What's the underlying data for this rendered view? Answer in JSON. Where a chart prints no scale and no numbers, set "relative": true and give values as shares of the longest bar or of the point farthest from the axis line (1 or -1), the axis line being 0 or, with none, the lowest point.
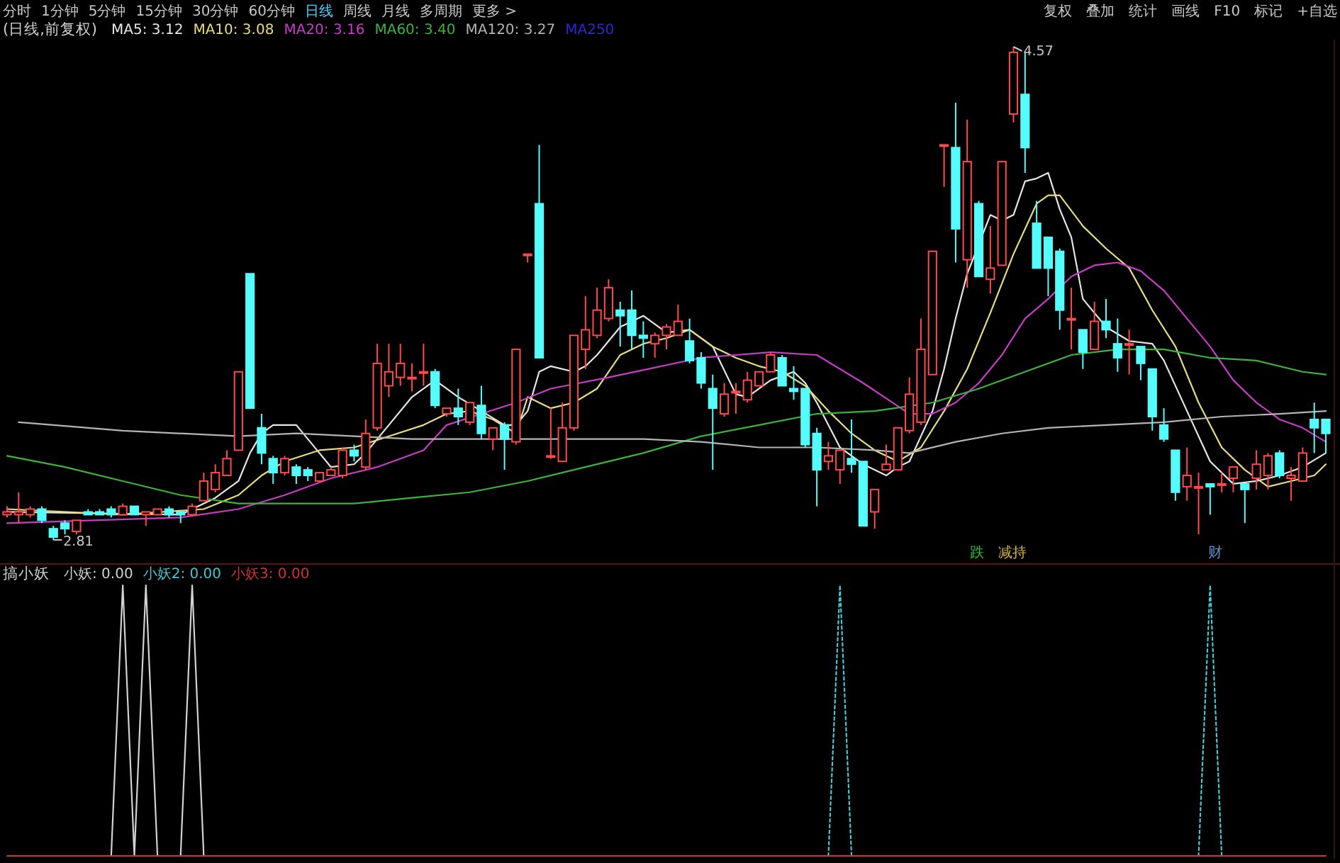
{
  "chart_data": [
    {
      "type": "candlestick",
      "title": "(日线,前复权)",
      "legend": "top left",
      "annotations": [
        "分时",
        "1分钟",
        "5分钟",
        "15分钟",
        "30分钟",
        "60分钟",
        "日线",
        "周线",
        "月线",
        "多周期",
        "更多 >",
        "复权",
        "叠加",
        "统计",
        "画线",
        "F10",
        "标记",
        "+自选",
        "MA250",
        "4.57",
        "2.81",
        "跌",
        "减持",
        "财"
      ],
      "categories": [
        null,
        null,
        null,
        null,
        null,
        null,
        null,
        null,
        null,
        null,
        null,
        null,
        null,
        null,
        null,
        null,
        null,
        null,
        null,
        null,
        null,
        null,
        null,
        null,
        null,
        null,
        null,
        null,
        null,
        null,
        null,
        null,
        null,
        null,
        null,
        null,
        null,
        null,
        null,
        null,
        null,
        null,
        null,
        null,
        null,
        null,
        null,
        null,
        null,
        null,
        null,
        null,
        null,
        null,
        null,
        null,
        null,
        null,
        null,
        null,
        null,
        null,
        null,
        null,
        null,
        null,
        null,
        null,
        null,
        null,
        null,
        null,
        null,
        null,
        null,
        null,
        null,
        null,
        null,
        null,
        null,
        null,
        null,
        null,
        null,
        null,
        null,
        null,
        null,
        null,
        null,
        null,
        null,
        null,
        null,
        null,
        null,
        null,
        null,
        null,
        null,
        null,
        null,
        null,
        null,
        null,
        null,
        null,
        null,
        null,
        null,
        null,
        null,
        null,
        null
      ],
      "ohlc": [
        [
          2.9,
          2.93,
          2.89,
          2.91
        ],
        [
          2.9,
          2.98,
          2.87,
          2.91
        ],
        [
          2.9,
          2.93,
          2.89,
          2.92
        ],
        [
          2.92,
          2.93,
          2.87,
          2.88
        ],
        [
          2.85,
          2.86,
          2.81,
          2.82
        ],
        [
          2.87,
          2.88,
          2.83,
          2.85
        ],
        [
          2.84,
          2.88,
          2.83,
          2.88
        ],
        [
          2.91,
          2.92,
          2.9,
          2.9
        ],
        [
          2.91,
          2.92,
          2.9,
          2.9
        ],
        [
          2.92,
          2.93,
          2.89,
          2.9
        ],
        [
          2.9,
          2.94,
          2.9,
          2.93
        ],
        [
          2.93,
          2.93,
          2.9,
          2.9
        ],
        [
          2.9,
          2.91,
          2.86,
          2.91
        ],
        [
          2.9,
          2.92,
          2.9,
          2.92
        ],
        [
          2.92,
          2.93,
          2.89,
          2.9
        ],
        [
          2.91,
          2.91,
          2.87,
          2.9
        ],
        [
          2.9,
          2.94,
          2.9,
          2.93
        ],
        [
          2.95,
          3.05,
          2.95,
          3.02
        ],
        [
          2.99,
          3.08,
          2.98,
          3.05
        ],
        [
          3.04,
          3.13,
          3.04,
          3.1
        ],
        [
          3.13,
          3.41,
          3.13,
          3.41
        ],
        [
          3.76,
          3.76,
          3.28,
          3.28
        ],
        [
          3.21,
          3.26,
          3.08,
          3.12
        ],
        [
          3.1,
          3.11,
          3.01,
          3.05
        ],
        [
          3.05,
          3.11,
          3.04,
          3.1
        ],
        [
          3.07,
          3.08,
          3.01,
          3.04
        ],
        [
          3.06,
          3.07,
          3.02,
          3.04
        ],
        [
          3.02,
          3.05,
          3.02,
          3.05
        ],
        [
          3.04,
          3.07,
          3.04,
          3.06
        ],
        [
          3.04,
          3.14,
          3.03,
          3.13
        ],
        [
          3.13,
          3.15,
          3.09,
          3.11
        ],
        [
          3.07,
          3.24,
          3.06,
          3.19
        ],
        [
          3.21,
          3.51,
          3.2,
          3.44
        ],
        [
          3.36,
          3.51,
          3.32,
          3.41
        ],
        [
          3.39,
          3.51,
          3.36,
          3.44
        ],
        [
          3.39,
          3.44,
          3.34,
          3.39
        ],
        [
          3.41,
          3.51,
          3.36,
          3.41
        ],
        [
          3.41,
          3.42,
          3.28,
          3.29
        ],
        [
          3.26,
          3.28,
          3.25,
          3.28
        ],
        [
          3.28,
          3.35,
          3.22,
          3.25
        ],
        [
          3.23,
          3.3,
          3.22,
          3.3
        ],
        [
          3.29,
          3.36,
          3.17,
          3.19
        ],
        [
          3.17,
          3.21,
          3.13,
          3.21
        ],
        [
          3.22,
          3.23,
          3.06,
          3.17
        ],
        [
          3.16,
          3.49,
          3.15,
          3.49
        ],
        [
          3.83,
          3.83,
          3.8,
          3.83
        ],
        [
          4.01,
          4.22,
          3.46,
          3.46
        ],
        [
          3.11,
          3.28,
          3.1,
          3.11
        ],
        [
          3.09,
          3.3,
          3.09,
          3.21
        ],
        [
          3.21,
          3.54,
          3.2,
          3.54
        ],
        [
          3.49,
          3.68,
          3.42,
          3.56
        ],
        [
          3.54,
          3.71,
          3.53,
          3.63
        ],
        [
          3.6,
          3.74,
          3.59,
          3.71
        ],
        [
          3.63,
          3.66,
          3.5,
          3.61
        ],
        [
          3.63,
          3.7,
          3.49,
          3.54
        ],
        [
          3.54,
          3.59,
          3.46,
          3.53
        ],
        [
          3.51,
          3.55,
          3.46,
          3.54
        ],
        [
          3.54,
          3.58,
          3.49,
          3.57
        ],
        [
          3.54,
          3.65,
          3.54,
          3.59
        ],
        [
          3.52,
          3.6,
          3.44,
          3.45
        ],
        [
          3.46,
          3.48,
          3.35,
          3.37
        ],
        [
          3.35,
          3.4,
          3.06,
          3.28
        ],
        [
          3.26,
          3.37,
          3.25,
          3.33
        ],
        [
          3.34,
          3.37,
          3.26,
          3.34
        ],
        [
          3.31,
          3.41,
          3.3,
          3.38
        ],
        [
          3.36,
          3.41,
          3.36,
          3.41
        ],
        [
          3.41,
          3.48,
          3.41,
          3.47
        ],
        [
          3.46,
          3.47,
          3.36,
          3.36
        ],
        [
          3.35,
          3.43,
          3.31,
          3.34
        ],
        [
          3.35,
          3.35,
          3.14,
          3.15
        ],
        [
          3.19,
          3.21,
          2.93,
          3.06
        ],
        [
          3.09,
          3.16,
          3.06,
          3.11
        ],
        [
          3.06,
          3.13,
          3.01,
          3.13
        ],
        [
          3.1,
          3.24,
          3.05,
          3.08
        ],
        [
          3.09,
          3.09,
          2.86,
          2.86
        ],
        [
          2.91,
          2.99,
          2.85,
          2.99
        ],
        [
          3.06,
          3.15,
          3.06,
          3.08
        ],
        [
          3.06,
          3.21,
          3.06,
          3.21
        ],
        [
          3.2,
          3.39,
          3.19,
          3.33
        ],
        [
          3.23,
          3.6,
          3.22,
          3.49
        ],
        [
          3.4,
          3.84,
          3.4,
          3.84
        ],
        [
          4.22,
          4.22,
          4.07,
          4.22
        ],
        [
          4.21,
          4.37,
          3.8,
          3.92
        ],
        [
          3.81,
          4.31,
          3.71,
          4.16
        ],
        [
          4.01,
          4.02,
          3.75,
          3.75
        ],
        [
          3.74,
          3.93,
          3.69,
          3.78
        ],
        [
          3.79,
          4.16,
          3.79,
          4.16
        ],
        [
          4.33,
          4.57,
          4.3,
          4.55
        ],
        [
          4.4,
          4.55,
          4.12,
          4.21
        ],
        [
          3.94,
          4.02,
          3.78,
          3.78
        ],
        [
          3.89,
          3.89,
          3.68,
          3.78
        ],
        [
          3.84,
          3.85,
          3.56,
          3.63
        ],
        [
          3.6,
          3.71,
          3.49,
          3.6
        ],
        [
          3.56,
          3.56,
          3.42,
          3.48
        ],
        [
          3.49,
          3.66,
          3.49,
          3.59
        ],
        [
          3.59,
          3.67,
          3.53,
          3.56
        ],
        [
          3.51,
          3.6,
          3.41,
          3.46
        ],
        [
          3.51,
          3.56,
          3.4,
          3.51
        ],
        [
          3.5,
          3.5,
          3.38,
          3.44
        ],
        [
          3.42,
          3.42,
          3.2,
          3.25
        ],
        [
          3.22,
          3.28,
          3.16,
          3.17
        ],
        [
          3.13,
          3.13,
          2.95,
          2.98
        ],
        [
          3.0,
          3.14,
          2.95,
          3.04
        ],
        [
          3.0,
          3.05,
          2.83,
          3.0
        ],
        [
          3.01,
          3.01,
          2.9,
          3.0
        ],
        [
          3.01,
          3.05,
          2.98,
          3.01
        ],
        [
          3.03,
          3.07,
          2.98,
          3.07
        ],
        [
          3.01,
          3.01,
          2.87,
          2.99
        ],
        [
          3.03,
          3.13,
          2.99,
          3.08
        ],
        [
          3.04,
          3.12,
          2.99,
          3.11
        ],
        [
          3.12,
          3.13,
          3.03,
          3.04
        ],
        [
          3.03,
          3.07,
          2.95,
          3.04
        ],
        [
          3.02,
          3.14,
          3.02,
          3.12
        ],
        [
          3.24,
          3.3,
          3.12,
          3.21
        ],
        [
          3.24,
          3.24,
          3.12,
          3.19
        ]
      ],
      "series": [
        {
          "name": "MA5: 3.12",
          "type": "line",
          "color": "#e6e6e6",
          "values": [
            2.91,
            null,
            null,
            null,
            null,
            null,
            null,
            null,
            null,
            null,
            null,
            null,
            null,
            null,
            null,
            2.9,
            null,
            null,
            2.96,
            null,
            3.02,
            3.12,
            3.19,
            3.22,
            null,
            3.22,
            null,
            3.12,
            3.07,
            null,
            3.08,
            3.12,
            null,
            3.22,
            null,
            3.32,
            null,
            3.38,
            null,
            3.32,
            null,
            3.27,
            null,
            3.22,
            3.22,
            3.27,
            3.41,
            3.43,
            null,
            3.41,
            3.43,
            3.47,
            null,
            3.57,
            null,
            3.61,
            null,
            3.55,
            null,
            3.56,
            null,
            3.5,
            null,
            3.33,
            3.32,
            null,
            3.38,
            null,
            3.41,
            3.37,
            3.3,
            null,
            3.14,
            null,
            3.08,
            null,
            3.04,
            3.07,
            3.09,
            null,
            3.27,
            3.42,
            3.6,
            3.76,
            null,
            3.97,
            3.95,
            3.97,
            4.09,
            4.1,
            4.12,
            3.99,
            3.89,
            3.67,
            null,
            3.57,
            null,
            3.52,
            null,
            3.51,
            3.45,
            null,
            3.27,
            null,
            3.09,
            null,
            3.01,
            null,
            3.02,
            null,
            3.04,
            null,
            3.07,
            null,
            3.12
          ]
        },
        {
          "name": "MA10: 3.08",
          "type": "line",
          "color": "#e8dc82",
          "values": [
            2.92,
            null,
            null,
            null,
            null,
            null,
            null,
            null,
            null,
            null,
            2.9,
            null,
            null,
            null,
            null,
            null,
            null,
            2.92,
            null,
            null,
            2.97,
            null,
            3.04,
            null,
            3.09,
            null,
            null,
            3.13,
            null,
            null,
            3.14,
            null,
            null,
            3.18,
            null,
            null,
            3.22,
            null,
            3.26,
            null,
            3.27,
            null,
            3.24,
            null,
            3.19,
            3.32,
            null,
            3.28,
            null,
            3.3,
            null,
            3.35,
            null,
            3.47,
            null,
            3.51,
            null,
            3.53,
            null,
            3.56,
            null,
            3.5,
            null,
            3.46,
            null,
            3.43,
            null,
            3.41,
            null,
            3.36,
            null,
            3.27,
            null,
            3.19,
            null,
            3.13,
            null,
            3.09,
            null,
            3.14,
            null,
            3.27,
            null,
            3.42,
            null,
            3.62,
            null,
            3.83,
            null,
            4.01,
            4.04,
            4.04,
            null,
            3.93,
            null,
            3.85,
            null,
            3.78,
            null,
            3.63,
            null,
            3.5,
            null,
            3.3,
            null,
            3.14,
            null,
            3.06,
            null,
            3.0,
            null,
            3.02,
            null,
            3.04,
            3.08
          ]
        },
        {
          "name": "MA20: 3.16",
          "type": "line",
          "color": "#c83cc8",
          "values": [
            2.87,
            null,
            null,
            null,
            null,
            null,
            null,
            null,
            null,
            null,
            null,
            null,
            null,
            null,
            null,
            2.89,
            null,
            null,
            null,
            null,
            2.92,
            null,
            null,
            null,
            2.97,
            null,
            null,
            null,
            3.03,
            null,
            null,
            null,
            3.07,
            null,
            null,
            null,
            3.13,
            null,
            3.22,
            null,
            null,
            null,
            null,
            null,
            3.3,
            null,
            null,
            3.35,
            null,
            null,
            null,
            null,
            3.39,
            null,
            null,
            null,
            null,
            null,
            null,
            null,
            3.46,
            null,
            null,
            null,
            null,
            null,
            3.48,
            null,
            null,
            null,
            3.47,
            null,
            null,
            null,
            3.37,
            null,
            null,
            null,
            3.26,
            null,
            3.26,
            null,
            3.3,
            null,
            3.37,
            null,
            3.47,
            null,
            3.6,
            null,
            3.67,
            null,
            3.75,
            null,
            3.79,
            null,
            3.8,
            null,
            3.77,
            null,
            3.7,
            null,
            3.6,
            null,
            3.5,
            null,
            3.38,
            null,
            3.3,
            null,
            3.24,
            null,
            3.21,
            null,
            3.16
          ]
        },
        {
          "name": "MA60: 3.40",
          "type": "line",
          "color": "#3cb43c",
          "values": [
            3.11,
            null,
            null,
            null,
            null,
            3.07,
            null,
            null,
            null,
            null,
            3.02,
            null,
            null,
            null,
            null,
            2.97,
            null,
            null,
            null,
            null,
            2.94,
            null,
            null,
            null,
            null,
            2.94,
            null,
            null,
            null,
            null,
            2.94,
            null,
            null,
            null,
            null,
            2.96,
            null,
            null,
            null,
            null,
            2.98,
            null,
            null,
            null,
            null,
            3.02,
            null,
            null,
            null,
            null,
            3.07,
            null,
            null,
            null,
            null,
            3.12,
            null,
            null,
            null,
            null,
            3.18,
            null,
            null,
            null,
            null,
            3.22,
            null,
            null,
            null,
            null,
            3.26,
            null,
            null,
            null,
            null,
            3.27,
            null,
            null,
            null,
            null,
            3.3,
            null,
            null,
            null,
            3.35,
            null,
            null,
            null,
            3.41,
            null,
            null,
            null,
            3.47,
            null,
            null,
            null,
            3.49,
            null,
            null,
            null,
            3.49,
            null,
            null,
            null,
            3.46,
            null,
            null,
            null,
            3.45,
            null,
            null,
            null,
            3.41,
            null,
            3.4
          ]
        },
        {
          "name": "MA120: 3.27",
          "type": "line",
          "color": "#b4b4b4",
          "values": [
            null,
            3.23,
            null,
            null,
            null,
            null,
            null,
            null,
            null,
            null,
            3.2,
            null,
            null,
            null,
            null,
            null,
            null,
            null,
            null,
            null,
            3.18,
            null,
            null,
            null,
            null,
            3.19,
            null,
            null,
            null,
            null,
            3.18,
            null,
            null,
            null,
            null,
            3.17,
            null,
            null,
            null,
            null,
            3.17,
            null,
            null,
            null,
            null,
            3.17,
            null,
            null,
            null,
            null,
            3.17,
            null,
            null,
            null,
            null,
            3.17,
            null,
            null,
            null,
            null,
            3.16,
            null,
            null,
            null,
            null,
            3.14,
            null,
            null,
            null,
            null,
            3.14,
            null,
            null,
            null,
            null,
            3.13,
            null,
            null,
            3.12,
            null,
            null,
            null,
            3.16,
            null,
            null,
            null,
            3.19,
            null,
            null,
            null,
            3.21,
            null,
            null,
            null,
            null,
            3.22,
            null,
            null,
            null,
            null,
            3.23,
            null,
            null,
            null,
            null,
            3.25,
            null,
            null,
            null,
            null,
            3.26,
            null,
            null,
            null,
            3.27
          ]
        }
      ]
    },
    {
      "type": "line",
      "title": "搞小妖",
      "legend": "top left",
      "relative": true,
      "categories": [
        null,
        null,
        null,
        null,
        null,
        null,
        null,
        null,
        null,
        null,
        null,
        null,
        null,
        null,
        null,
        null,
        null,
        null,
        null,
        null,
        null,
        null,
        null,
        null,
        null,
        null,
        null,
        null,
        null,
        null,
        null,
        null,
        null,
        null,
        null,
        null,
        null,
        null,
        null,
        null,
        null,
        null,
        null,
        null,
        null,
        null,
        null,
        null,
        null,
        null,
        null,
        null,
        null,
        null,
        null,
        null,
        null,
        null,
        null,
        null,
        null,
        null,
        null,
        null,
        null,
        null,
        null,
        null,
        null,
        null,
        null,
        null,
        null,
        null,
        null,
        null,
        null,
        null,
        null,
        null,
        null,
        null,
        null,
        null,
        null,
        null,
        null,
        null,
        null,
        null,
        null,
        null,
        null,
        null,
        null,
        null,
        null,
        null,
        null,
        null,
        null,
        null,
        null,
        null,
        null,
        null,
        null,
        null,
        null,
        null,
        null,
        null,
        null,
        null,
        null
      ],
      "series": [
        {
          "name": "小妖: 0.00",
          "color": "#d2d2d2",
          "line_style": "solid",
          "values": [
            null,
            null,
            null,
            null,
            null,
            null,
            null,
            null,
            null,
            0,
            1,
            0,
            1,
            0,
            null,
            0,
            1,
            0,
            null,
            null,
            null,
            null,
            null,
            null,
            null,
            null,
            null,
            null,
            null,
            null,
            null,
            null,
            null,
            null,
            null,
            null,
            null,
            null,
            null,
            null,
            null,
            null,
            null,
            null,
            null,
            null,
            null,
            null,
            null,
            null,
            null,
            null,
            null,
            null,
            null,
            null,
            null,
            null,
            null,
            null,
            null,
            null,
            null,
            null,
            null,
            null,
            null,
            null,
            null,
            null,
            null,
            null,
            null,
            null,
            null,
            null,
            null,
            null,
            null,
            null,
            null,
            null,
            null,
            null,
            null,
            null,
            null,
            null,
            null,
            null,
            null,
            null,
            null,
            null,
            null,
            null,
            null,
            null,
            null,
            null,
            null,
            null,
            null,
            null,
            null,
            null,
            null,
            null,
            null,
            null,
            null,
            null,
            null,
            null,
            null
          ]
        },
        {
          "name": "小妖2: 0.00",
          "color": "#46c8d2",
          "line_style": "dotted",
          "values": [
            null,
            null,
            null,
            null,
            null,
            null,
            null,
            null,
            null,
            null,
            null,
            null,
            null,
            null,
            null,
            null,
            null,
            null,
            null,
            null,
            null,
            null,
            null,
            null,
            null,
            null,
            null,
            null,
            null,
            null,
            null,
            null,
            null,
            null,
            null,
            null,
            null,
            null,
            null,
            null,
            null,
            null,
            null,
            null,
            null,
            null,
            null,
            null,
            null,
            null,
            null,
            null,
            null,
            null,
            null,
            null,
            null,
            null,
            null,
            null,
            null,
            null,
            null,
            null,
            null,
            null,
            null,
            null,
            null,
            null,
            null,
            0,
            1,
            0,
            null,
            null,
            null,
            null,
            null,
            null,
            null,
            null,
            null,
            null,
            null,
            null,
            null,
            null,
            null,
            null,
            null,
            null,
            null,
            null,
            null,
            null,
            null,
            null,
            null,
            null,
            null,
            null,
            null,
            0,
            1,
            0,
            null,
            null,
            null,
            null,
            null,
            null,
            null,
            null,
            null
          ]
        },
        {
          "name": "小妖3: 0.00",
          "color": "#d23232",
          "line_style": "solid",
          "values": [
            0,
            0,
            0,
            0,
            0,
            0,
            0,
            0,
            0,
            0,
            0,
            0,
            0,
            0,
            0,
            0,
            0,
            0,
            0,
            0,
            0,
            0,
            0,
            0,
            0,
            0,
            0,
            0,
            0,
            0,
            0,
            0,
            0,
            0,
            0,
            0,
            0,
            0,
            0,
            0,
            0,
            0,
            0,
            0,
            0,
            0,
            0,
            0,
            0,
            0,
            0,
            0,
            0,
            0,
            0,
            0,
            0,
            0,
            0,
            0,
            0,
            0,
            0,
            0,
            0,
            0,
            0,
            0,
            0,
            0,
            0,
            0,
            0,
            0,
            0,
            0,
            0,
            0,
            0,
            0,
            0,
            0,
            0,
            0,
            0,
            0,
            0,
            0,
            0,
            0,
            0,
            0,
            0,
            0,
            0,
            0,
            0,
            0,
            0,
            0,
            0,
            0,
            0,
            0,
            0,
            0,
            0,
            0,
            0,
            0,
            0,
            0,
            0,
            0,
            0
          ]
        }
      ]
    }
  ]
}
